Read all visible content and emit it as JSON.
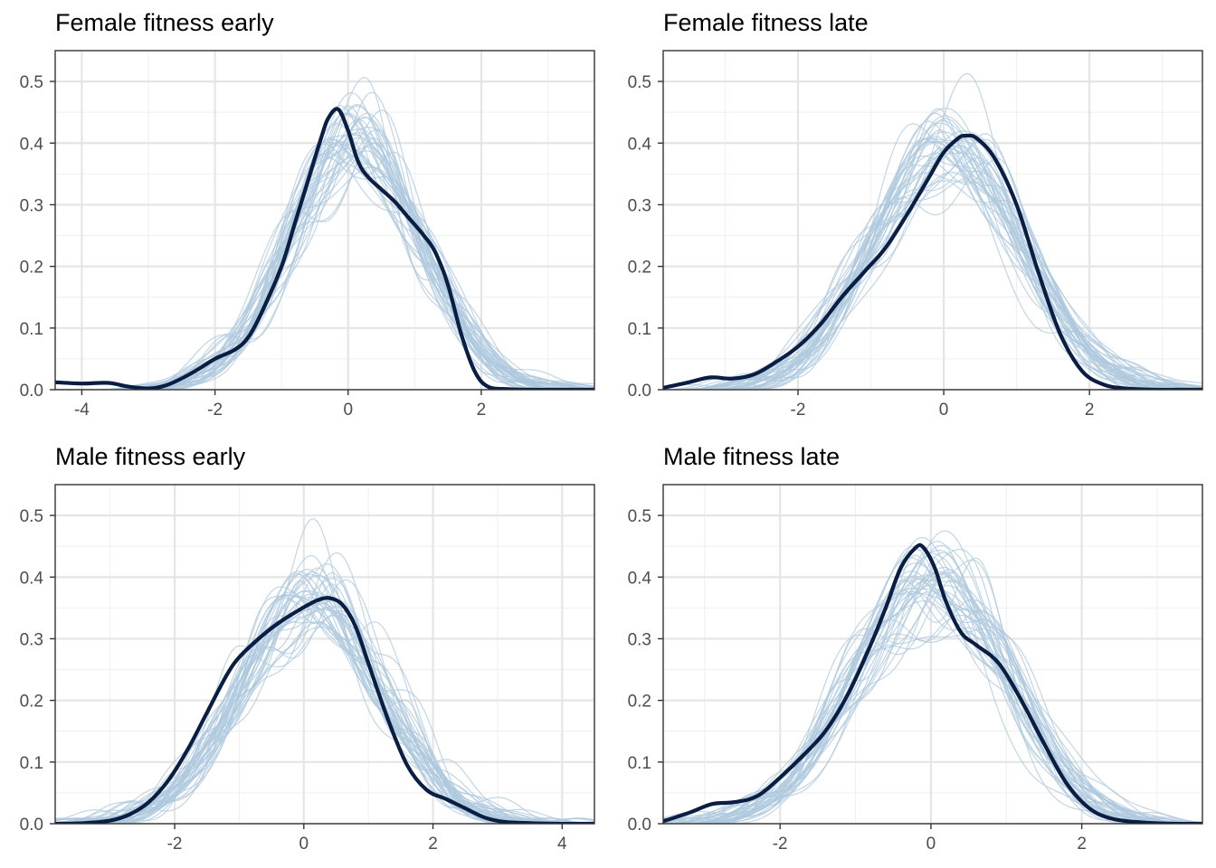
{
  "colors": {
    "observed": "#0a1d42",
    "samples": "#adc8de",
    "grid": "#e5e5e5",
    "border": "#333333"
  },
  "chart_data": [
    {
      "type": "line",
      "title": "Female fitness early",
      "xlabel": "",
      "ylabel": "",
      "xlim": [
        -4.4,
        3.7
      ],
      "ylim": [
        0,
        0.55
      ],
      "x_ticks": [
        -4,
        -2,
        0,
        2
      ],
      "y_ticks": [
        0.0,
        0.1,
        0.2,
        0.3,
        0.4,
        0.5
      ],
      "tick_labels_x": [
        "-4",
        "-2",
        "0",
        "2"
      ],
      "tick_labels_y": [
        "0.0",
        "0.1",
        "0.2",
        "0.3",
        "0.4",
        "0.5"
      ],
      "series": [
        {
          "name": "observed",
          "x": [
            -4.4,
            -4.0,
            -3.6,
            -3.3,
            -3.0,
            -2.8,
            -2.6,
            -2.3,
            -2.0,
            -1.7,
            -1.5,
            -1.3,
            -1.0,
            -0.8,
            -0.6,
            -0.4,
            -0.3,
            -0.15,
            0.0,
            0.15,
            0.3,
            0.5,
            0.7,
            0.9,
            1.1,
            1.3,
            1.5,
            1.7,
            1.9,
            2.1,
            2.4,
            2.8,
            3.2,
            3.7
          ],
          "y": [
            0.012,
            0.01,
            0.011,
            0.005,
            0.002,
            0.005,
            0.013,
            0.03,
            0.05,
            0.065,
            0.085,
            0.125,
            0.2,
            0.27,
            0.34,
            0.41,
            0.44,
            0.455,
            0.42,
            0.37,
            0.345,
            0.325,
            0.305,
            0.28,
            0.255,
            0.225,
            0.17,
            0.09,
            0.03,
            0.005,
            0.001,
            0.0,
            0.0,
            0.0
          ]
        }
      ],
      "samples": {
        "center": 0.1,
        "spread": 0.95,
        "count": 40,
        "seed": 11
      }
    },
    {
      "type": "line",
      "title": "Female fitness late",
      "xlabel": "",
      "ylabel": "",
      "xlim": [
        -3.85,
        3.55
      ],
      "ylim": [
        0,
        0.55
      ],
      "x_ticks": [
        -2,
        0,
        2
      ],
      "y_ticks": [
        0.0,
        0.1,
        0.2,
        0.3,
        0.4,
        0.5
      ],
      "tick_labels_x": [
        "-2",
        "0",
        "2"
      ],
      "tick_labels_y": [
        "0.0",
        "0.1",
        "0.2",
        "0.3",
        "0.4",
        "0.5"
      ],
      "series": [
        {
          "name": "observed",
          "x": [
            -3.85,
            -3.5,
            -3.2,
            -2.9,
            -2.6,
            -2.3,
            -2.0,
            -1.7,
            -1.4,
            -1.1,
            -0.8,
            -0.5,
            -0.2,
            0.0,
            0.2,
            0.3,
            0.45,
            0.7,
            1.0,
            1.3,
            1.6,
            1.9,
            2.2,
            2.5,
            2.9,
            3.2,
            3.55
          ],
          "y": [
            0.003,
            0.012,
            0.02,
            0.018,
            0.025,
            0.045,
            0.07,
            0.105,
            0.15,
            0.19,
            0.23,
            0.285,
            0.345,
            0.385,
            0.408,
            0.412,
            0.408,
            0.375,
            0.3,
            0.19,
            0.09,
            0.03,
            0.008,
            0.002,
            0.0,
            0.0,
            0.0
          ]
        }
      ],
      "samples": {
        "center": 0.05,
        "spread": 0.98,
        "count": 40,
        "seed": 23
      }
    },
    {
      "type": "line",
      "title": "Male fitness early",
      "xlabel": "",
      "ylabel": "",
      "xlim": [
        -3.85,
        4.5
      ],
      "ylim": [
        0,
        0.55
      ],
      "x_ticks": [
        -2,
        0,
        2,
        4
      ],
      "y_ticks": [
        0.0,
        0.1,
        0.2,
        0.3,
        0.4,
        0.5
      ],
      "tick_labels_x": [
        "-2",
        "0",
        "2",
        "4"
      ],
      "tick_labels_y": [
        "0.0",
        "0.1",
        "0.2",
        "0.3",
        "0.4",
        "0.5"
      ],
      "series": [
        {
          "name": "observed",
          "x": [
            -3.85,
            -3.4,
            -3.0,
            -2.7,
            -2.4,
            -2.1,
            -1.8,
            -1.5,
            -1.2,
            -1.0,
            -0.7,
            -0.4,
            -0.1,
            0.2,
            0.4,
            0.6,
            0.8,
            1.0,
            1.3,
            1.6,
            1.9,
            2.2,
            2.5,
            2.8,
            3.1,
            3.5,
            4.0,
            4.5
          ],
          "y": [
            0.0,
            0.001,
            0.005,
            0.015,
            0.035,
            0.07,
            0.12,
            0.18,
            0.24,
            0.27,
            0.3,
            0.325,
            0.345,
            0.362,
            0.366,
            0.355,
            0.32,
            0.26,
            0.17,
            0.095,
            0.055,
            0.04,
            0.025,
            0.01,
            0.003,
            0.001,
            0.0,
            0.0
          ]
        }
      ],
      "samples": {
        "center": 0.1,
        "spread": 1.05,
        "count": 40,
        "seed": 37
      }
    },
    {
      "type": "line",
      "title": "Male fitness late",
      "xlabel": "",
      "ylabel": "",
      "xlim": [
        -3.55,
        3.6
      ],
      "ylim": [
        0,
        0.55
      ],
      "x_ticks": [
        -2,
        0,
        2
      ],
      "y_ticks": [
        0.0,
        0.1,
        0.2,
        0.3,
        0.4,
        0.5
      ],
      "tick_labels_x": [
        "-2",
        "0",
        "2"
      ],
      "tick_labels_y": [
        "0.0",
        "0.1",
        "0.2",
        "0.3",
        "0.4",
        "0.5"
      ],
      "series": [
        {
          "name": "observed",
          "x": [
            -3.55,
            -3.2,
            -2.9,
            -2.6,
            -2.3,
            -2.0,
            -1.7,
            -1.4,
            -1.1,
            -0.8,
            -0.6,
            -0.4,
            -0.2,
            -0.1,
            0.05,
            0.2,
            0.4,
            0.6,
            0.9,
            1.2,
            1.5,
            1.8,
            2.1,
            2.4,
            2.8,
            3.2,
            3.6
          ],
          "y": [
            0.004,
            0.018,
            0.032,
            0.035,
            0.045,
            0.075,
            0.11,
            0.15,
            0.21,
            0.29,
            0.35,
            0.415,
            0.448,
            0.448,
            0.415,
            0.36,
            0.31,
            0.29,
            0.26,
            0.2,
            0.13,
            0.065,
            0.025,
            0.008,
            0.002,
            0.0,
            0.0
          ]
        }
      ],
      "samples": {
        "center": 0.0,
        "spread": 0.97,
        "count": 40,
        "seed": 53
      }
    }
  ]
}
